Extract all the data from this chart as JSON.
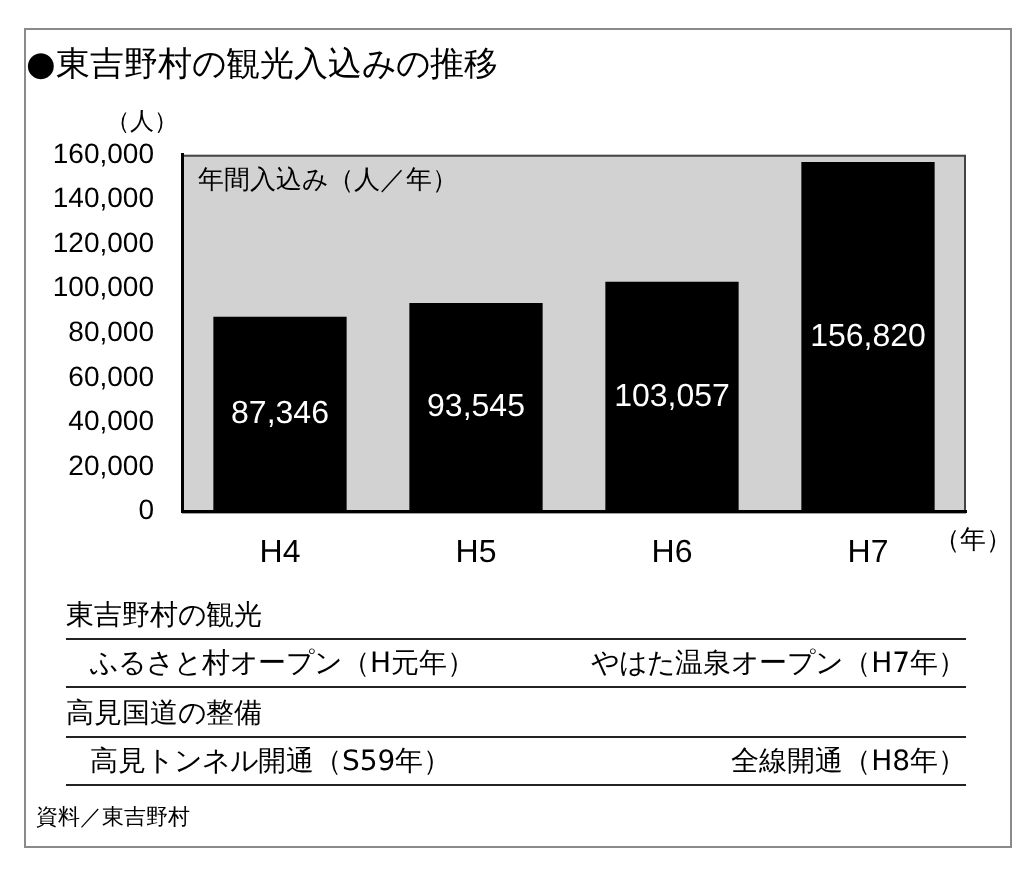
{
  "chart_data": {
    "type": "bar",
    "title": "●東吉野村の観光入込みの推移",
    "ylabel": "（人）",
    "xlabel": "（年）",
    "categories": [
      "H4",
      "H5",
      "H6",
      "H7"
    ],
    "values": [
      87346,
      93545,
      103057,
      156820
    ],
    "color": "#000000",
    "value_labels": [
      "87,346",
      "93,545",
      "103,057",
      "156,820"
    ],
    "ylim": [
      0,
      160000
    ],
    "yticks": [
      0,
      {
        "value": 20000,
        "label": "20,000"
      },
      {
        "value": 40000,
        "label": "40,000"
      },
      {
        "value": 60000,
        "label": "60,000"
      },
      {
        "value": 80000,
        "label": "80,000"
      },
      {
        "value": 100000,
        "label": "100,000"
      },
      {
        "value": 120000,
        "label": "120,000"
      },
      {
        "value": 140000,
        "label": "140,000"
      },
      {
        "value": 160000,
        "label": "160,000"
      }
    ],
    "annotations": [
      "年間入込み（人／年）",
      "東吉野村の観光",
      "ふるさと村オープン（H元年）",
      "やはた温泉オープン（H7年）",
      "高見国道の整備",
      "高見トンネル開通（S59年）",
      "全線開通（H8年）",
      "資料／東吉野村"
    ]
  }
}
